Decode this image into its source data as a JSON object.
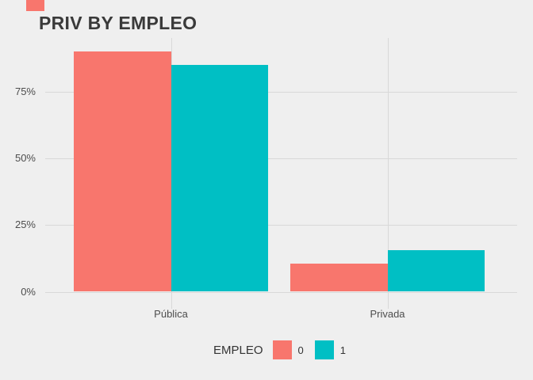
{
  "colors": {
    "page_background": "#EFEFEF",
    "gridline": "#D8D8D8",
    "title_text": "#3A3A3A",
    "axis_text": "#4D4D4D",
    "legend_text": "#333333",
    "empleo_0": "#F8766D",
    "empleo_1": "#00BFC4"
  },
  "top_left_marker": {
    "shape": "rectangle",
    "color_key": "empleo_0"
  },
  "chart_data": {
    "type": "bar",
    "title": "PRIV BY EMPLEO",
    "xlabel": "",
    "ylabel": "",
    "categories": [
      "Pública",
      "Privada"
    ],
    "series": [
      {
        "name": "0",
        "color": "#F8766D",
        "values": [
          90,
          10.5
        ]
      },
      {
        "name": "1",
        "color": "#00BFC4",
        "values": [
          85,
          15.5
        ]
      }
    ],
    "y_ticks": [
      {
        "value": 0,
        "label": "0%"
      },
      {
        "value": 25,
        "label": "25%"
      },
      {
        "value": 50,
        "label": "50%"
      },
      {
        "value": 75,
        "label": "75%"
      }
    ],
    "ylim": [
      0,
      95
    ],
    "grid": true,
    "bar_layout": "grouped-dodge",
    "legend": {
      "title": "EMPLEO",
      "position": "bottom"
    }
  }
}
